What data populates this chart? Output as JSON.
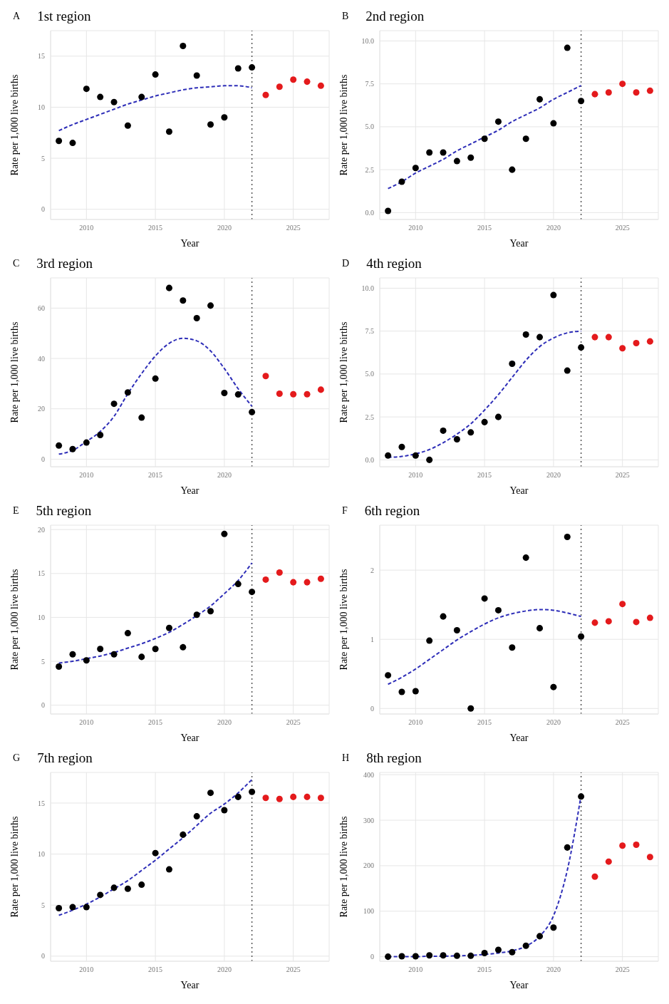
{
  "chart_data": [
    {
      "type": "scatter",
      "title": "1st region",
      "annotations": [
        "A"
      ],
      "xlabel": "Year",
      "ylabel": "Rate per 1,000 live births",
      "xlim": [
        2007.4,
        2027.6
      ],
      "xticks": [
        2010,
        2015,
        2020,
        2025
      ],
      "ylim": [
        -1,
        17.5
      ],
      "yticks": [
        0,
        5,
        10,
        15
      ],
      "grid": true,
      "marker": "circle",
      "ref_lines": [
        {
          "axis": "x",
          "value": 2022,
          "color": "#555555",
          "line_style": "dotted"
        }
      ],
      "series": [
        {
          "color": "#000000",
          "x": [
            2008,
            2009,
            2010,
            2011,
            2012,
            2013,
            2014,
            2015,
            2016,
            2017,
            2018,
            2019,
            2020,
            2021,
            2022
          ],
          "values": [
            6.7,
            6.5,
            11.8,
            11.0,
            10.5,
            8.2,
            11.0,
            13.2,
            7.6,
            16.0,
            13.1,
            8.3,
            9.0,
            13.8,
            13.9
          ]
        },
        {
          "color": "#e41a1c",
          "x": [
            2023,
            2024,
            2025,
            2026,
            2027
          ],
          "values": [
            11.2,
            12.0,
            12.7,
            12.5,
            12.1
          ]
        },
        {
          "type": "line",
          "line_style": "dashed",
          "color": "#2e2eb8",
          "x": [
            2008,
            2009,
            2010,
            2011,
            2012,
            2013,
            2014,
            2015,
            2016,
            2017,
            2018,
            2019,
            2020,
            2021,
            2022
          ],
          "values": [
            7.7,
            8.3,
            8.8,
            9.3,
            9.8,
            10.3,
            10.7,
            11.1,
            11.4,
            11.7,
            11.9,
            12.0,
            12.1,
            12.1,
            11.9
          ],
          "marker": "none"
        }
      ]
    },
    {
      "type": "scatter",
      "title": "2nd region",
      "annotations": [
        "B"
      ],
      "xlabel": "Year",
      "ylabel": "Rate per 1,000 live births",
      "xlim": [
        2007.4,
        2027.6
      ],
      "xticks": [
        2010,
        2015,
        2020,
        2025
      ],
      "ylim": [
        -0.4,
        10.6
      ],
      "yticks": [
        {
          "value": 0,
          "label": "0.0"
        },
        {
          "value": 2.5,
          "label": "2.5"
        },
        {
          "value": 5,
          "label": "5.0"
        },
        {
          "value": 7.5,
          "label": "7.5"
        },
        {
          "value": 10,
          "label": "10.0"
        }
      ],
      "grid": true,
      "marker": "circle",
      "ref_lines": [
        {
          "axis": "x",
          "value": 2022,
          "color": "#555555",
          "line_style": "dotted"
        }
      ],
      "series": [
        {
          "color": "#000000",
          "x": [
            2008,
            2009,
            2010,
            2011,
            2012,
            2013,
            2014,
            2015,
            2016,
            2017,
            2018,
            2019,
            2020,
            2021,
            2022
          ],
          "values": [
            0.1,
            1.8,
            2.6,
            3.5,
            3.5,
            3.0,
            3.2,
            4.3,
            5.3,
            2.5,
            4.3,
            6.6,
            5.2,
            9.6,
            6.5
          ]
        },
        {
          "color": "#e41a1c",
          "x": [
            2023,
            2024,
            2025,
            2026,
            2027
          ],
          "values": [
            6.9,
            7.0,
            7.5,
            7.0,
            7.1
          ]
        },
        {
          "type": "line",
          "line_style": "dashed",
          "color": "#2e2eb8",
          "x": [
            2008,
            2009,
            2010,
            2011,
            2012,
            2013,
            2014,
            2015,
            2016,
            2017,
            2018,
            2019,
            2020,
            2021,
            2022
          ],
          "values": [
            1.4,
            1.8,
            2.3,
            2.7,
            3.1,
            3.6,
            4.0,
            4.4,
            4.8,
            5.3,
            5.7,
            6.1,
            6.6,
            7.0,
            7.4
          ],
          "marker": "none"
        }
      ]
    },
    {
      "type": "scatter",
      "title": "3rd region",
      "annotations": [
        "C"
      ],
      "xlabel": "Year",
      "ylabel": "Rate per 1,000 live births",
      "xlim": [
        2007.4,
        2027.6
      ],
      "xticks": [
        2010,
        2015,
        2020,
        {
          "value": 2025,
          "label": null
        }
      ],
      "ylim": [
        -3,
        72
      ],
      "yticks": [
        0,
        20,
        40,
        60
      ],
      "grid": true,
      "marker": "circle",
      "ref_lines": [
        {
          "axis": "x",
          "value": 2022,
          "color": "#555555",
          "line_style": "dotted"
        }
      ],
      "series": [
        {
          "color": "#000000",
          "x": [
            2008,
            2009,
            2010,
            2011,
            2012,
            2013,
            2014,
            2015,
            2016,
            2017,
            2018,
            2019,
            2020,
            2021,
            2022
          ],
          "values": [
            5.4,
            4.0,
            6.6,
            9.6,
            22,
            26.5,
            16.5,
            32,
            68,
            63,
            56,
            61,
            26.3,
            25.7,
            18.7
          ]
        },
        {
          "color": "#e41a1c",
          "x": [
            2023,
            2024,
            2025,
            2026,
            2027
          ],
          "values": [
            33,
            26,
            25.8,
            25.8,
            27.6
          ]
        },
        {
          "type": "line",
          "line_style": "dashed",
          "color": "#2e2eb8",
          "x": [
            2008,
            2009,
            2010,
            2011,
            2012,
            2013,
            2014,
            2015,
            2016,
            2017,
            2018,
            2019,
            2020,
            2021,
            2022
          ],
          "values": [
            2,
            3.5,
            7,
            11,
            17,
            26,
            34,
            41,
            46,
            48,
            47,
            43,
            36,
            28,
            21
          ],
          "marker": "none"
        }
      ]
    },
    {
      "type": "scatter",
      "title": "4th region",
      "annotations": [
        "D"
      ],
      "xlabel": "Year",
      "ylabel": "Rate per 1,000 live births",
      "xlim": [
        2007.4,
        2027.6
      ],
      "xticks": [
        2010,
        2015,
        2020,
        2025
      ],
      "ylim": [
        -0.4,
        10.6
      ],
      "yticks": [
        {
          "value": 0,
          "label": "0.0"
        },
        {
          "value": 2.5,
          "label": "2.5"
        },
        {
          "value": 5,
          "label": "5.0"
        },
        {
          "value": 7.5,
          "label": "7.5"
        },
        {
          "value": 10,
          "label": "10.0"
        }
      ],
      "grid": true,
      "marker": "circle",
      "ref_lines": [
        {
          "axis": "x",
          "value": 2022,
          "color": "#555555",
          "line_style": "dotted"
        }
      ],
      "series": [
        {
          "color": "#000000",
          "x": [
            2008,
            2009,
            2010,
            2011,
            2012,
            2013,
            2014,
            2015,
            2016,
            2017,
            2018,
            2019,
            2020,
            2021,
            2022
          ],
          "values": [
            0.25,
            0.75,
            0.25,
            0.0,
            1.7,
            1.2,
            1.6,
            2.2,
            2.5,
            5.6,
            7.3,
            7.15,
            9.6,
            5.2,
            6.55
          ]
        },
        {
          "color": "#e41a1c",
          "x": [
            2023,
            2024,
            2025,
            2026,
            2027
          ],
          "values": [
            7.15,
            7.15,
            6.5,
            6.8,
            6.9
          ]
        },
        {
          "type": "line",
          "line_style": "dashed",
          "color": "#2e2eb8",
          "x": [
            2008,
            2009,
            2010,
            2011,
            2012,
            2013,
            2014,
            2015,
            2016,
            2017,
            2018,
            2019,
            2020,
            2021,
            2022
          ],
          "values": [
            0.15,
            0.2,
            0.35,
            0.6,
            1.0,
            1.5,
            2.1,
            2.9,
            3.8,
            4.8,
            5.8,
            6.6,
            7.1,
            7.4,
            7.5
          ],
          "marker": "none"
        }
      ]
    },
    {
      "type": "scatter",
      "title": "5th region",
      "annotations": [
        "E"
      ],
      "xlabel": "Year",
      "ylabel": "Rate per 1,000 live births",
      "xlim": [
        2007.4,
        2027.6
      ],
      "xticks": [
        2010,
        2015,
        2020,
        2025
      ],
      "ylim": [
        -1,
        20.5
      ],
      "yticks": [
        0,
        5,
        10,
        15,
        20
      ],
      "grid": true,
      "marker": "circle",
      "ref_lines": [
        {
          "axis": "x",
          "value": 2022,
          "color": "#555555",
          "line_style": "dotted"
        }
      ],
      "series": [
        {
          "color": "#000000",
          "x": [
            2008,
            2009,
            2010,
            2011,
            2012,
            2013,
            2014,
            2015,
            2016,
            2017,
            2018,
            2019,
            2020,
            2021,
            2022
          ],
          "values": [
            4.4,
            5.8,
            5.1,
            6.4,
            5.8,
            8.2,
            5.5,
            6.4,
            8.8,
            6.6,
            10.3,
            10.7,
            19.5,
            13.8,
            12.9
          ]
        },
        {
          "color": "#e41a1c",
          "x": [
            2023,
            2024,
            2025,
            2026,
            2027
          ],
          "values": [
            14.3,
            15.1,
            14.0,
            14.0,
            14.4
          ]
        },
        {
          "type": "line",
          "line_style": "dashed",
          "color": "#2e2eb8",
          "x": [
            2008,
            2009,
            2010,
            2011,
            2012,
            2013,
            2014,
            2015,
            2016,
            2017,
            2018,
            2019,
            2020,
            2021,
            2022
          ],
          "values": [
            4.8,
            5.0,
            5.3,
            5.6,
            6.0,
            6.5,
            7.0,
            7.6,
            8.3,
            9.2,
            10.2,
            11.3,
            12.7,
            14.2,
            16.2
          ],
          "marker": "none"
        }
      ]
    },
    {
      "type": "scatter",
      "title": "6th region",
      "annotations": [
        "F"
      ],
      "xlabel": "Year",
      "ylabel": "Rate per 1,000 live births",
      "xlim": [
        2007.4,
        2027.6
      ],
      "xticks": [
        2010,
        2015,
        2020,
        2025
      ],
      "ylim": [
        -0.08,
        2.65
      ],
      "yticks": [
        0,
        1,
        2
      ],
      "grid": true,
      "marker": "circle",
      "ref_lines": [
        {
          "axis": "x",
          "value": 2022,
          "color": "#555555",
          "line_style": "dotted"
        }
      ],
      "series": [
        {
          "color": "#000000",
          "x": [
            2008,
            2009,
            2010,
            2011,
            2012,
            2013,
            2014,
            2015,
            2016,
            2017,
            2018,
            2019,
            2020,
            2021,
            2022
          ],
          "values": [
            0.48,
            0.24,
            0.25,
            0.98,
            1.33,
            1.13,
            0.0,
            1.59,
            1.42,
            0.88,
            2.18,
            1.16,
            0.31,
            2.48,
            1.04
          ]
        },
        {
          "color": "#e41a1c",
          "x": [
            2023,
            2024,
            2025,
            2026,
            2027
          ],
          "values": [
            1.24,
            1.26,
            1.51,
            1.25,
            1.31
          ]
        },
        {
          "type": "line",
          "line_style": "dashed",
          "color": "#2e2eb8",
          "x": [
            2008,
            2009,
            2010,
            2011,
            2012,
            2013,
            2014,
            2015,
            2016,
            2017,
            2018,
            2019,
            2020,
            2021,
            2022
          ],
          "values": [
            0.35,
            0.45,
            0.57,
            0.71,
            0.85,
            0.99,
            1.11,
            1.22,
            1.31,
            1.37,
            1.41,
            1.43,
            1.42,
            1.38,
            1.33
          ],
          "marker": "none"
        }
      ]
    },
    {
      "type": "scatter",
      "title": "7th region",
      "annotations": [
        "G"
      ],
      "xlabel": "Year",
      "ylabel": "Rate per 1,000 live births",
      "xlim": [
        2007.4,
        2027.6
      ],
      "xticks": [
        2010,
        2015,
        2020,
        2025
      ],
      "ylim": [
        -0.5,
        18
      ],
      "yticks": [
        0,
        5,
        10,
        15
      ],
      "grid": true,
      "marker": "circle",
      "ref_lines": [
        {
          "axis": "x",
          "value": 2022,
          "color": "#555555",
          "line_style": "dotted"
        }
      ],
      "series": [
        {
          "color": "#000000",
          "x": [
            2008,
            2009,
            2010,
            2011,
            2012,
            2013,
            2014,
            2015,
            2016,
            2017,
            2018,
            2019,
            2020,
            2021,
            2022
          ],
          "values": [
            4.7,
            4.8,
            4.8,
            6.0,
            6.7,
            6.6,
            7.0,
            10.1,
            8.5,
            11.9,
            13.7,
            16.0,
            14.3,
            15.6,
            16.1
          ]
        },
        {
          "color": "#e41a1c",
          "x": [
            2023,
            2024,
            2025,
            2026,
            2027
          ],
          "values": [
            15.5,
            15.4,
            15.6,
            15.6,
            15.5
          ]
        },
        {
          "type": "line",
          "line_style": "dashed",
          "color": "#2e2eb8",
          "x": [
            2008,
            2009,
            2010,
            2011,
            2012,
            2013,
            2014,
            2015,
            2016,
            2017,
            2018,
            2019,
            2020,
            2021,
            2022
          ],
          "values": [
            4.0,
            4.5,
            5.1,
            5.8,
            6.6,
            7.4,
            8.4,
            9.4,
            10.5,
            11.6,
            12.8,
            14.0,
            14.9,
            16.0,
            17.3
          ],
          "marker": "none"
        }
      ]
    },
    {
      "type": "scatter",
      "title": "8th region",
      "annotations": [
        "H"
      ],
      "xlabel": "Year",
      "ylabel": "Rate per 1,000 live births",
      "xlim": [
        2007.4,
        2027.6
      ],
      "xticks": [
        2010,
        2015,
        2020,
        2025
      ],
      "ylim": [
        -10,
        405
      ],
      "yticks": [
        0,
        100,
        200,
        300,
        400
      ],
      "grid": true,
      "marker": "circle",
      "ref_lines": [
        {
          "axis": "x",
          "value": 2022,
          "color": "#555555",
          "line_style": "dotted"
        }
      ],
      "series": [
        {
          "color": "#000000",
          "x": [
            2008,
            2009,
            2010,
            2011,
            2012,
            2013,
            2014,
            2015,
            2016,
            2017,
            2018,
            2019,
            2020,
            2021,
            2022
          ],
          "values": [
            0,
            1,
            1,
            3,
            3,
            2,
            2,
            8,
            15,
            10,
            24,
            45,
            64,
            240,
            352
          ]
        },
        {
          "color": "#e41a1c",
          "x": [
            2023,
            2024,
            2025,
            2026,
            2027
          ],
          "values": [
            176,
            209,
            244,
            246,
            219
          ]
        },
        {
          "type": "line",
          "line_style": "dashed",
          "color": "#2e2eb8",
          "x": [
            2008,
            2009,
            2010,
            2011,
            2012,
            2013,
            2014,
            2015,
            2016,
            2017,
            2018,
            2019,
            2020,
            2021,
            2022
          ],
          "values": [
            0,
            0,
            0,
            1,
            1,
            2,
            3,
            5,
            8,
            13,
            23,
            45,
            90,
            190,
            355
          ],
          "marker": "none"
        }
      ]
    }
  ]
}
